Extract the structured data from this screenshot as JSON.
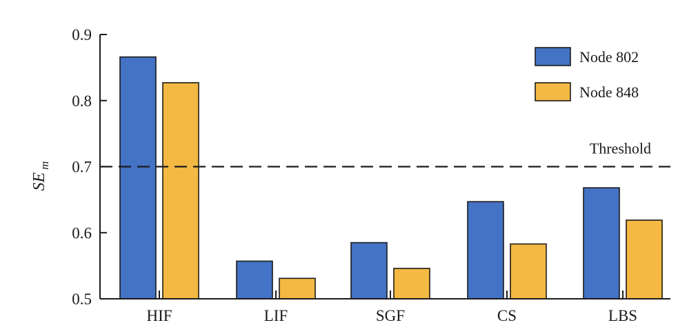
{
  "chart_data": {
    "type": "bar",
    "categories": [
      "HIF",
      "LIF",
      "SGF",
      "CS",
      "LBS"
    ],
    "series": [
      {
        "name": "Node 802",
        "color": "#4472c4",
        "values": [
          0.866,
          0.557,
          0.585,
          0.647,
          0.668
        ]
      },
      {
        "name": "Node 848",
        "color": "#f4b942",
        "values": [
          0.827,
          0.531,
          0.546,
          0.583,
          0.619
        ]
      }
    ],
    "ylabel_main": "SE",
    "ylabel_sub": "m",
    "ylim": [
      0.5,
      0.9
    ],
    "yticks": [
      0.5,
      0.6,
      0.7,
      0.8,
      0.9
    ],
    "ytick_labels": [
      "0.5",
      "0.6",
      "0.7",
      "0.8",
      "0.9"
    ],
    "threshold": {
      "value": 0.7,
      "label": "Threshold",
      "style": "dashed"
    },
    "legend_position": "top-right",
    "grid": false
  }
}
